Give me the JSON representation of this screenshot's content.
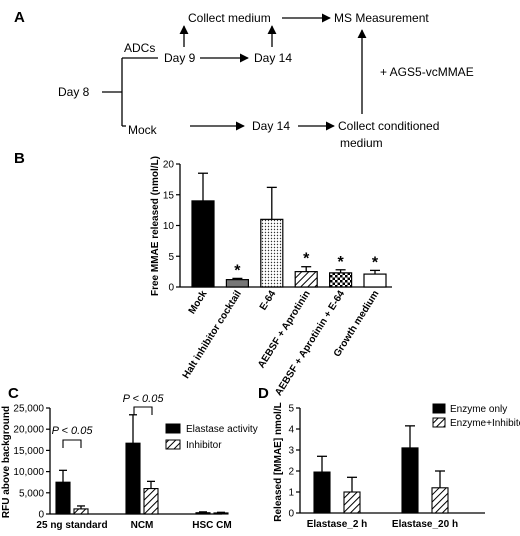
{
  "panel_labels": {
    "a": "A",
    "b": "B",
    "c": "C",
    "d": "D"
  },
  "flow": {
    "day8": "Day 8",
    "adcs": "ADCs",
    "mock": "Mock",
    "day9": "Day 9",
    "day14_top": "Day 14",
    "day14_bottom": "Day 14",
    "collect_medium": "Collect medium",
    "ms_measurement": "MS Measurement",
    "ags5": "+ AGS5-vcMMAE",
    "collect_conditioned_line1": "Collect conditioned",
    "collect_conditioned_line2": "medium"
  },
  "chart_data": [
    {
      "id": "B",
      "type": "bar",
      "title": "",
      "ylabel": "Free MMAE released (nmol/L)",
      "xlabel": "",
      "ylim": [
        0,
        20
      ],
      "yticks": [
        0,
        5,
        10,
        15,
        20
      ],
      "categories": [
        "Mock",
        "Halt inhibitor cocktail",
        "E-64",
        "AEBSF + Aprotinin",
        "AEBSF + Aprotinin + E-64",
        "Growth medium"
      ],
      "values": [
        14.0,
        1.2,
        11.0,
        2.5,
        2.3,
        2.1
      ],
      "errors": [
        4.5,
        0.2,
        5.2,
        0.8,
        0.5,
        0.6
      ],
      "fills": [
        "solid-black",
        "solid-gray",
        "dotted",
        "diagonal-hatch",
        "checkered",
        "white"
      ],
      "significance": [
        false,
        true,
        false,
        true,
        true,
        true
      ],
      "sig_marker": "*",
      "grid": false
    },
    {
      "id": "C",
      "type": "bar",
      "title": "",
      "ylabel": "RFU above background",
      "xlabel": "",
      "ylim": [
        0,
        25000
      ],
      "yticks": [
        "0",
        "5,000",
        "10,000",
        "15,000",
        "20,000",
        "25,000"
      ],
      "categories": [
        "25 ng standard",
        "NCM",
        "HSC CM"
      ],
      "series": [
        {
          "name": "Elastase activity",
          "values": [
            7500,
            16700,
            300
          ],
          "errors": [
            2800,
            6700,
            200
          ],
          "fill": "solid-black"
        },
        {
          "name": "Inhibitor",
          "values": [
            1200,
            6000,
            250
          ],
          "errors": [
            700,
            1700,
            150
          ],
          "fill": "diagonal-hatch"
        }
      ],
      "annotations": [
        "P < 0.05",
        "P < 0.05"
      ],
      "legend": "top-right",
      "grid": false
    },
    {
      "id": "D",
      "type": "bar",
      "title": "",
      "ylabel": "Released [MMAE] nmol/L",
      "xlabel": "",
      "ylim": [
        0,
        5
      ],
      "yticks": [
        0,
        1,
        2,
        3,
        4,
        5
      ],
      "categories": [
        "Elastase_2 h",
        "Elastase_20 h"
      ],
      "series": [
        {
          "name": "Enzyme only",
          "values": [
            1.95,
            3.1
          ],
          "errors": [
            0.75,
            1.05
          ],
          "fill": "solid-black"
        },
        {
          "name": "Enzyme+Inhibitor",
          "values": [
            1.0,
            1.2
          ],
          "errors": [
            0.7,
            0.8
          ],
          "fill": "diagonal-hatch"
        }
      ],
      "legend": "top-right",
      "grid": false
    }
  ]
}
